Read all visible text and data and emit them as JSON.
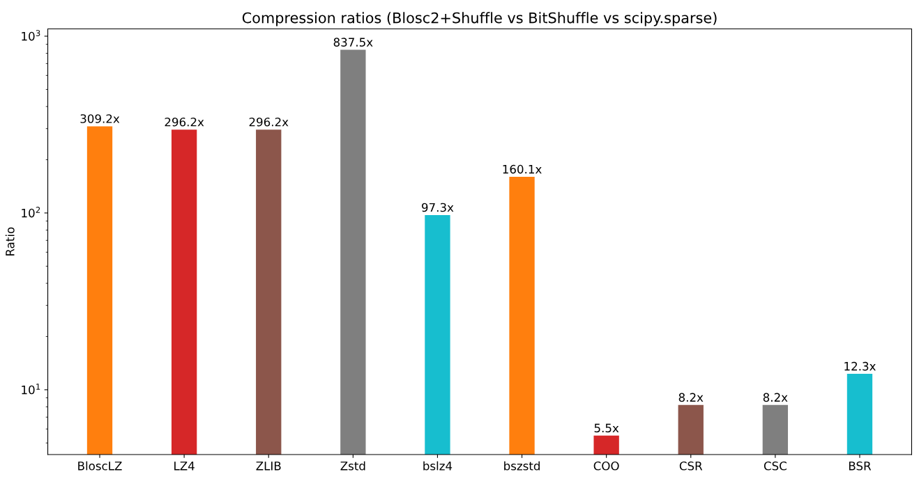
{
  "chart_data": {
    "type": "bar",
    "title": "Compression ratios (Blosc2+Shuffle vs BitShuffle vs scipy.sparse)",
    "ylabel": "Ratio",
    "categories": [
      "BloscLZ",
      "LZ4",
      "ZLIB",
      "Zstd",
      "bslz4",
      "bszstd",
      "COO",
      "CSR",
      "CSC",
      "BSR"
    ],
    "values": [
      309.2,
      296.2,
      296.2,
      837.5,
      97.3,
      160.1,
      5.5,
      8.2,
      8.2,
      12.3
    ],
    "value_labels": [
      "309.2x",
      "296.2x",
      "296.2x",
      "837.5x",
      "97.3x",
      "160.1x",
      "5.5x",
      "8.2x",
      "8.2x",
      "12.3x"
    ],
    "colors": [
      "#ff7f0e",
      "#d62728",
      "#8c564b",
      "#7f7f7f",
      "#17becf",
      "#ff7f0e",
      "#d62728",
      "#8c564b",
      "#7f7f7f",
      "#17becf"
    ],
    "log": "y",
    "ylim": [
      4.3,
      1100
    ],
    "yticks": [
      {
        "value": 10,
        "label": "10$^{1}$"
      },
      {
        "value": 100,
        "label": "10$^{2}$"
      },
      {
        "value": 1000,
        "label": "10$^{3}$"
      }
    ],
    "grid": false,
    "legend": false
  }
}
